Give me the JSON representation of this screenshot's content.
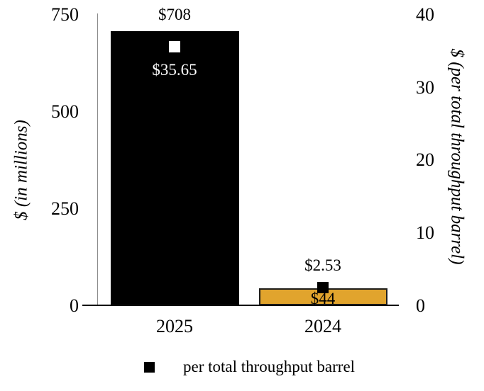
{
  "chart_data": {
    "type": "bar",
    "title": "",
    "categories": [
      "2025",
      "2024"
    ],
    "series": [
      {
        "name": "$ (in millions)",
        "type": "bar",
        "axis": "left",
        "values": [
          708,
          44
        ],
        "labels": [
          "$708",
          "$44"
        ],
        "bar_colors": [
          "#000000",
          "#E1A42D"
        ],
        "bar_border_colors": [
          "#000000",
          "#1F1E1C"
        ],
        "label_colors": [
          "#000000",
          "#000000"
        ],
        "label_positions": [
          "above-bar",
          "inside-bar"
        ]
      },
      {
        "name": "per total throughput barrel",
        "type": "scatter-square",
        "axis": "right",
        "values": [
          35.65,
          2.53
        ],
        "labels": [
          "$35.65",
          "$2.53"
        ],
        "marker_colors": [
          "#FFFFFF",
          "#000000"
        ],
        "label_colors": [
          "#FFFFFF",
          "#000000"
        ],
        "label_positions": [
          "below-marker",
          "above-marker"
        ]
      }
    ],
    "left_axis": {
      "title": "$ (in millions)",
      "min": 0,
      "max": 750,
      "ticks": [
        750,
        500,
        250,
        0
      ]
    },
    "right_axis": {
      "title": "$ (per total throughput barrel)",
      "min": 0,
      "max": 40,
      "ticks": [
        40,
        30,
        20,
        10,
        0
      ]
    },
    "legend": {
      "position": "bottom",
      "items": [
        {
          "label": "per total throughput barrel",
          "marker_color": "#000000"
        }
      ]
    },
    "grid": "off",
    "background": "#FFFFFF"
  }
}
